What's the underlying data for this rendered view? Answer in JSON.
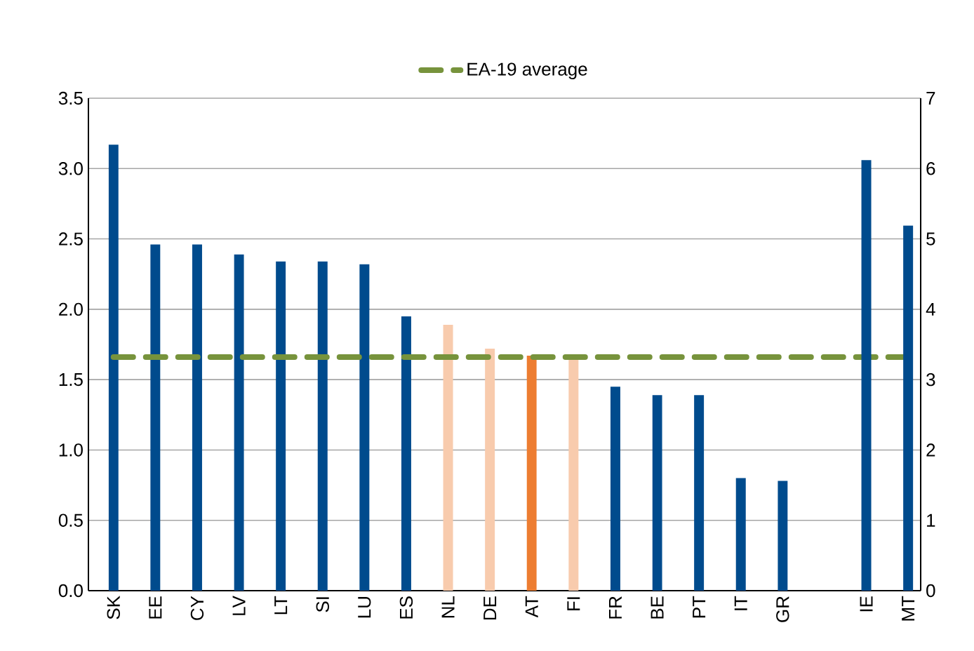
{
  "chart_data": {
    "type": "bar",
    "categories": [
      "SK",
      "EE",
      "CY",
      "LV",
      "LT",
      "SI",
      "LU",
      "ES",
      "NL",
      "DE",
      "AT",
      "FI",
      "FR",
      "BE",
      "PT",
      "IT",
      "GR",
      null,
      "IE",
      "MT"
    ],
    "series": [
      {
        "values": [
          3.17,
          2.46,
          2.46,
          2.39,
          2.34,
          2.34,
          2.32,
          1.95,
          1.89,
          1.72,
          1.67,
          1.67,
          1.45,
          1.39,
          1.39,
          0.8,
          0.78,
          null,
          null,
          null
        ],
        "colors": [
          "#004b8d",
          "#004b8d",
          "#004b8d",
          "#004b8d",
          "#004b8d",
          "#004b8d",
          "#004b8d",
          "#004b8d",
          "#f8cbad",
          "#f8cbad",
          "#ed7d31",
          "#f8cbad",
          "#004b8d",
          "#004b8d",
          "#004b8d",
          "#004b8d",
          "#004b8d",
          "#004b8d",
          "#004b8d",
          "#004b8d"
        ]
      },
      {
        "color": "#004b8d",
        "axis": "y2",
        "values": [
          null,
          null,
          null,
          null,
          null,
          null,
          null,
          null,
          null,
          null,
          null,
          null,
          null,
          null,
          null,
          null,
          null,
          null,
          6.12,
          5.19
        ]
      }
    ],
    "ylim": [
      0,
      3.5
    ],
    "yticks": [
      {
        "value": 0,
        "label": "0.0"
      },
      {
        "value": 0.5,
        "label": "0.5"
      },
      {
        "value": 1,
        "label": "1.0"
      },
      {
        "value": 1.5,
        "label": "1.5"
      },
      {
        "value": 2,
        "label": "2.0"
      },
      {
        "value": 2.5,
        "label": "2.5"
      },
      {
        "value": 3,
        "label": "3.0"
      },
      {
        "value": 3.5,
        "label": "3.5"
      }
    ],
    "y2lim": [
      0,
      7
    ],
    "y2ticks": [
      0,
      1,
      2,
      3,
      4,
      5,
      6,
      7
    ],
    "ref_lines": [
      {
        "axis": "y",
        "value": 1.66,
        "label": "EA-19 average",
        "color": "#77933c",
        "line_style": "dashed"
      }
    ],
    "grid": "y",
    "legend": "top"
  }
}
